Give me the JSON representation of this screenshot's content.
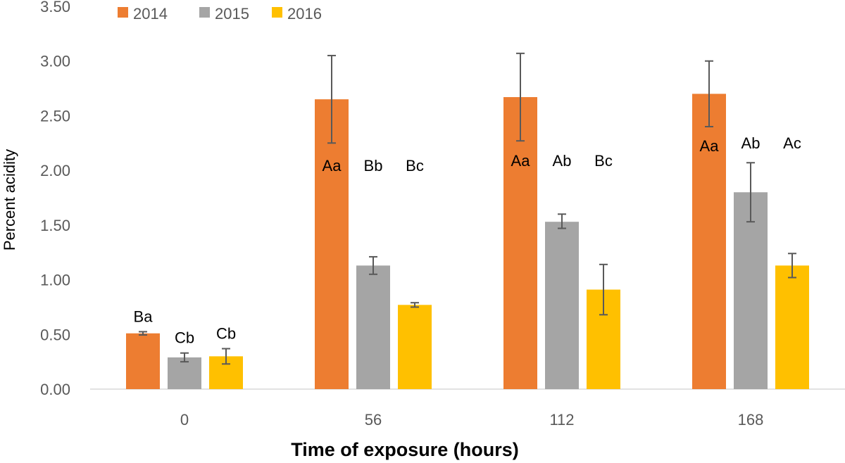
{
  "chart_data": {
    "type": "bar",
    "title": "",
    "xlabel": "Time of exposure (hours)",
    "ylabel": "Percent acidity",
    "categories": [
      "0",
      "56",
      "112",
      "168"
    ],
    "ylim": [
      0,
      3.5
    ],
    "yticks": [
      "0.00",
      "0.50",
      "1.00",
      "1.50",
      "2.00",
      "2.50",
      "3.00",
      "3.50"
    ],
    "grid": false,
    "legend": "top-left",
    "series": [
      {
        "name": "2014",
        "color": "#ED7D31",
        "values": [
          0.51,
          2.65,
          2.67,
          2.7
        ],
        "error_low": [
          0.495,
          2.25,
          2.27,
          2.4
        ],
        "error_high": [
          0.525,
          3.05,
          3.07,
          3.0
        ],
        "labels": [
          "Ba",
          "Aa",
          "Aa",
          "Aa"
        ]
      },
      {
        "name": "2015",
        "color": "#A5A5A5",
        "values": [
          0.29,
          1.13,
          1.53,
          1.8
        ],
        "error_low": [
          0.25,
          1.05,
          1.47,
          1.53
        ],
        "error_high": [
          0.33,
          1.21,
          1.6,
          2.07
        ],
        "labels": [
          "Cb",
          "Bb",
          "Ab",
          "Ab"
        ]
      },
      {
        "name": "2016",
        "color": "#FFC000",
        "values": [
          0.3,
          0.77,
          0.91,
          1.13
        ],
        "error_low": [
          0.23,
          0.75,
          0.68,
          1.02
        ],
        "error_high": [
          0.37,
          0.79,
          1.14,
          1.24
        ],
        "labels": [
          "Cb",
          "Bc",
          "Bc",
          "Ac"
        ]
      }
    ]
  }
}
